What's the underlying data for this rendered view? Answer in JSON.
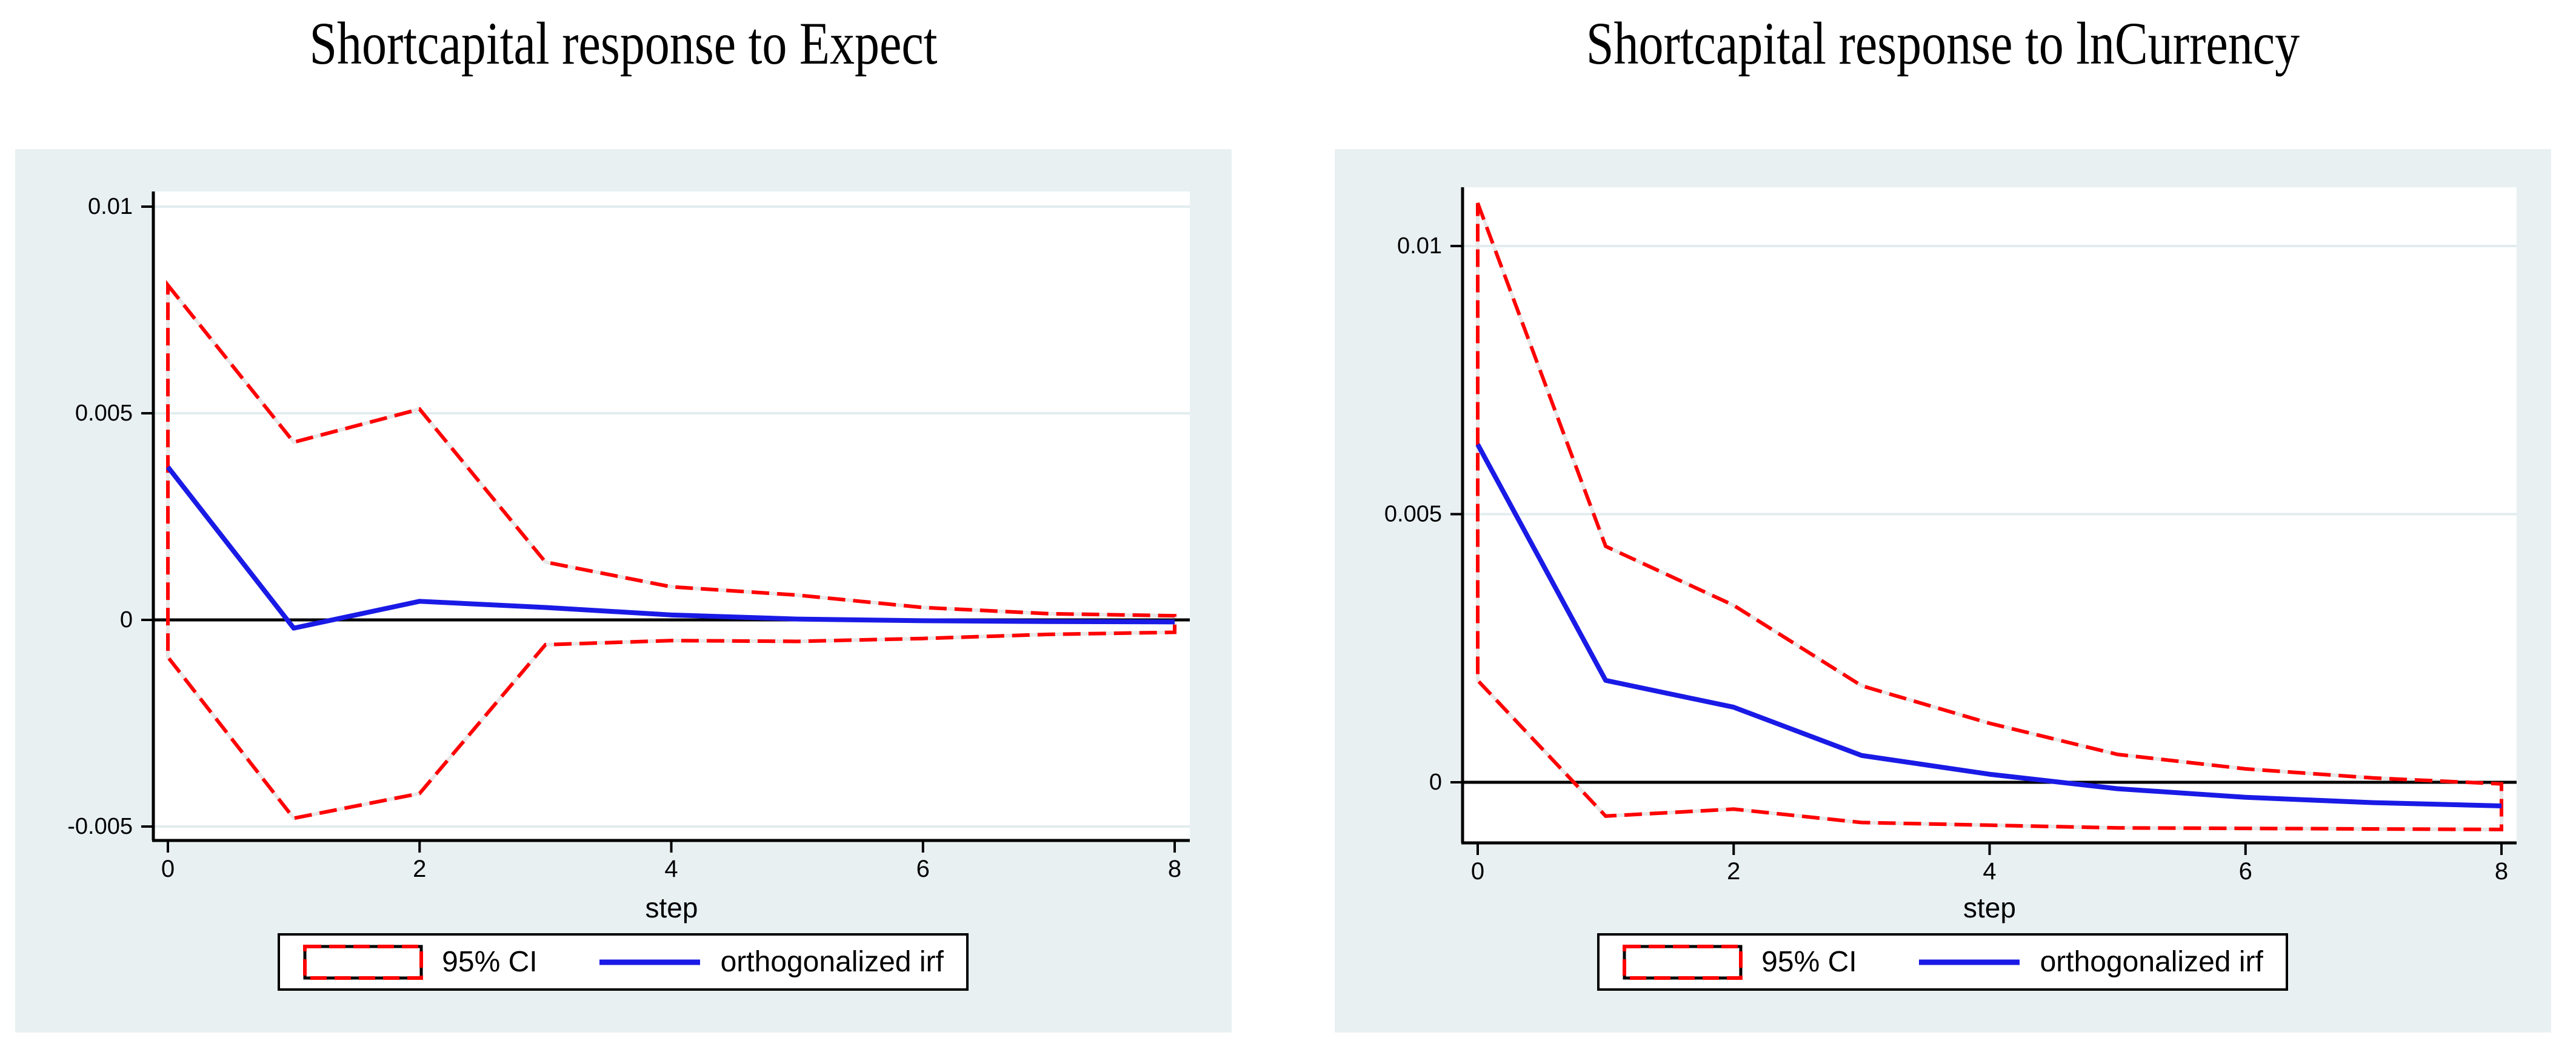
{
  "colors": {
    "background": "#ffffff",
    "panel": "#e9f0f2",
    "grid": "#e2ecef",
    "ci": "#ff0000",
    "ci_gap_underlay": "#e8e8e8",
    "irf": "#1a1ae6",
    "axis": "#000000"
  },
  "chart_data": [
    {
      "type": "line",
      "title": "Shortcapital response to Expect",
      "xlabel": "step",
      "x": [
        0,
        1,
        2,
        3,
        4,
        5,
        6,
        7,
        8
      ],
      "x_tick_values": [
        0,
        2,
        4,
        6,
        8
      ],
      "x_tick_labels": [
        "0",
        "2",
        "4",
        "6",
        "8"
      ],
      "y_tick_values": [
        0.01,
        0.005,
        0,
        -0.005
      ],
      "y_tick_labels": [
        "0.01",
        "0.005",
        "0",
        "-0.005"
      ],
      "xlim": [
        -0.12,
        8.12
      ],
      "ylim": [
        -0.00534,
        0.01037
      ],
      "grid": true,
      "zero_line": 0,
      "series": [
        {
          "name": "95% CI upper",
          "style": "dashed",
          "values": [
            0.0081,
            0.0043,
            0.0051,
            0.0014,
            0.0008,
            0.0006,
            0.0003,
            0.00015,
            0.0001
          ]
        },
        {
          "name": "95% CI lower",
          "style": "dashed",
          "values": [
            -0.0009,
            -0.0048,
            -0.0042,
            -0.0006,
            -0.0005,
            -0.00052,
            -0.00045,
            -0.00035,
            -0.0003
          ]
        },
        {
          "name": "orthogonalized irf",
          "style": "solid",
          "values": [
            0.0037,
            -0.0002,
            0.00045,
            0.0003,
            0.00012,
            2e-05,
            -2e-05,
            -4e-05,
            -5e-05
          ]
        }
      ],
      "legend": {
        "ci_label": "95% CI",
        "irf_label": "orthogonalized irf",
        "position": "bottom"
      }
    },
    {
      "type": "line",
      "title": "Shortcapital response to lnCurrency",
      "xlabel": "step",
      "x": [
        0,
        1,
        2,
        3,
        4,
        5,
        6,
        7,
        8
      ],
      "x_tick_values": [
        0,
        2,
        4,
        6,
        8
      ],
      "x_tick_labels": [
        "0",
        "2",
        "4",
        "6",
        "8"
      ],
      "y_tick_values": [
        0.01,
        0.005,
        0
      ],
      "y_tick_labels": [
        "0.01",
        "0.005",
        "0"
      ],
      "xlim": [
        -0.12,
        8.12
      ],
      "ylim": [
        -0.00113,
        0.0111
      ],
      "grid": true,
      "zero_line": 0,
      "series": [
        {
          "name": "95% CI upper",
          "style": "dashed",
          "values": [
            0.0108,
            0.0044,
            0.0033,
            0.0018,
            0.0011,
            0.00052,
            0.00025,
            8e-05,
            -3e-05
          ]
        },
        {
          "name": "95% CI lower",
          "style": "dashed",
          "values": [
            0.0019,
            -0.00063,
            -0.0005,
            -0.00075,
            -0.0008,
            -0.00085,
            -0.00086,
            -0.00087,
            -0.00088
          ]
        },
        {
          "name": "orthogonalized irf",
          "style": "solid",
          "values": [
            0.0063,
            0.0019,
            0.0014,
            0.0005,
            0.00015,
            -0.00012,
            -0.00028,
            -0.00038,
            -0.00044
          ]
        }
      ],
      "legend": {
        "ci_label": "95% CI",
        "irf_label": "orthogonalized irf",
        "position": "bottom"
      }
    }
  ]
}
